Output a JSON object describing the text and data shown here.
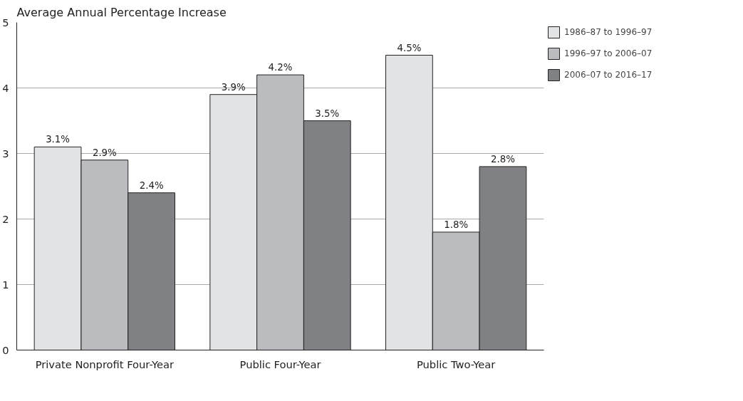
{
  "chart_data": {
    "type": "bar",
    "ylabel": "Average Annual Percentage Increase",
    "categories": [
      "Private Nonprofit Four-Year",
      "Public Four-Year",
      "Public Two-Year"
    ],
    "series": [
      {
        "name": "1986–87 to 1996–97",
        "color": "#e2e3e5",
        "values": [
          3.1,
          3.9,
          4.5
        ],
        "value_labels": [
          "3.1%",
          "3.9%",
          "4.5%"
        ]
      },
      {
        "name": "1996–97 to 2006–07",
        "color": "#bbbcc0",
        "values": [
          2.9,
          4.2,
          1.8
        ],
        "value_labels": [
          "2.9%",
          "4.2%",
          "1.8%"
        ]
      },
      {
        "name": "2006–07 to 2016–17",
        "color": "#808185",
        "values": [
          2.4,
          3.5,
          2.8
        ],
        "value_labels": [
          "2.4%",
          "3.5%",
          "2.8%"
        ]
      }
    ],
    "ylim": [
      0,
      5
    ],
    "yticks": [
      0,
      1,
      2,
      3,
      4,
      5
    ],
    "grid": "y",
    "legend": "top right"
  }
}
